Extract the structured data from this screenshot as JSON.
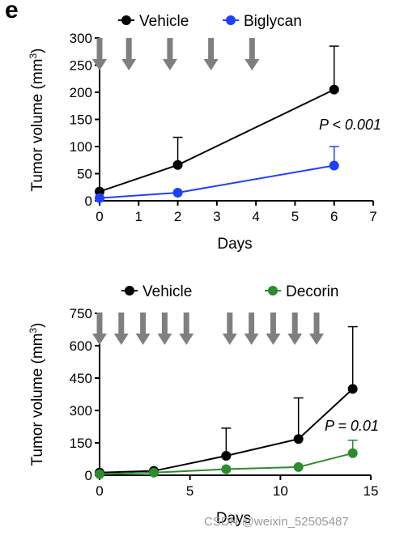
{
  "panel_label": "e",
  "watermark": "CSDN @weixin_52505487",
  "chart_data": [
    {
      "type": "line",
      "xlabel": "Days",
      "ylabel": "Tumor volume (mm",
      "ylabel_sup": "3",
      "ylabel_close": ")",
      "xlim": [
        0,
        7
      ],
      "ylim": [
        0,
        300
      ],
      "xticks": [
        0,
        1,
        2,
        3,
        4,
        5,
        6,
        7
      ],
      "yticks": [
        0,
        50,
        100,
        150,
        200,
        250,
        300
      ],
      "grid": false,
      "legend": "top",
      "annotation": "P < 0.001",
      "arrow_days": [
        0,
        0.75,
        1.8,
        2.85,
        3.9
      ],
      "series": [
        {
          "name": "Vehicle",
          "color": "#000000",
          "x": [
            0,
            2,
            6
          ],
          "y": [
            17,
            66,
            205
          ],
          "err": [
            0,
            51,
            80
          ]
        },
        {
          "name": "Biglycan",
          "color": "#1f3fff",
          "x": [
            0,
            2,
            6
          ],
          "y": [
            5,
            15,
            65
          ],
          "err": [
            0,
            0,
            35
          ]
        }
      ]
    },
    {
      "type": "line",
      "xlabel": "Days",
      "ylabel": "Tumor volume (mm",
      "ylabel_sup": "3",
      "ylabel_close": ")",
      "xlim": [
        0,
        15
      ],
      "ylim": [
        0,
        750
      ],
      "xticks": [
        0,
        5,
        10,
        15
      ],
      "yticks": [
        0,
        150,
        300,
        450,
        600,
        750
      ],
      "grid": false,
      "legend": "top",
      "annotation": "P = 0.01",
      "arrow_days": [
        0,
        1.2,
        2.4,
        3.6,
        4.8,
        7.2,
        8.4,
        9.6,
        10.8,
        12
      ],
      "series": [
        {
          "name": "Vehicle",
          "color": "#000000",
          "x": [
            0,
            3,
            7,
            11,
            14
          ],
          "y": [
            12,
            20,
            90,
            168,
            400
          ],
          "err": [
            0,
            0,
            128,
            190,
            288
          ]
        },
        {
          "name": "Decorin",
          "color": "#2e8b2e",
          "x": [
            0,
            3,
            7,
            11,
            14
          ],
          "y": [
            5,
            12,
            28,
            38,
            102
          ],
          "err": [
            0,
            0,
            0,
            0,
            60
          ]
        }
      ]
    }
  ]
}
